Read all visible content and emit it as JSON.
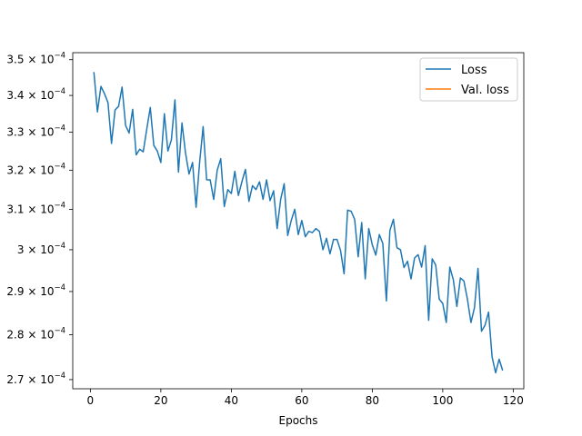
{
  "chart_data": {
    "type": "line",
    "title": "",
    "xlabel": "Epochs",
    "ylabel": "",
    "y_scale": "log",
    "xlim": [
      -5,
      123
    ],
    "ylim": [
      0.000268,
      0.000352
    ],
    "grid": false,
    "legend_placement": "top-right",
    "x_ticks": [
      0,
      20,
      40,
      60,
      80,
      100,
      120
    ],
    "x_tick_labels": [
      "0",
      "20",
      "40",
      "60",
      "80",
      "100",
      "120"
    ],
    "y_ticks": [
      0.00027,
      0.00028,
      0.00029,
      0.0003,
      0.00031,
      0.00032,
      0.00033,
      0.00034,
      0.00035
    ],
    "y_tick_labels": [
      {
        "mant": "2.7",
        "times": " × 10",
        "exp": "−4"
      },
      {
        "mant": "2.8",
        "times": " × 10",
        "exp": "−4"
      },
      {
        "mant": "2.9",
        "times": " × 10",
        "exp": "−4"
      },
      {
        "mant": "3",
        "times": " × 10",
        "exp": "−4"
      },
      {
        "mant": "3.1",
        "times": " × 10",
        "exp": "−4"
      },
      {
        "mant": "3.2",
        "times": " × 10",
        "exp": "−4"
      },
      {
        "mant": "3.3",
        "times": " × 10",
        "exp": "−4"
      },
      {
        "mant": "3.4",
        "times": " × 10",
        "exp": "−4"
      },
      {
        "mant": "3.5",
        "times": " × 10",
        "exp": "−4"
      }
    ],
    "series": [
      {
        "name": "Loss",
        "color": "#1f77b4",
        "x": [
          1,
          2,
          3,
          4,
          5,
          6,
          7,
          8,
          9,
          10,
          11,
          12,
          13,
          14,
          15,
          16,
          17,
          18,
          19,
          20,
          21,
          22,
          23,
          24,
          25,
          26,
          27,
          28,
          29,
          30,
          31,
          32,
          33,
          34,
          35,
          36,
          37,
          38,
          39,
          40,
          41,
          42,
          43,
          44,
          45,
          46,
          47,
          48,
          49,
          50,
          51,
          52,
          53,
          54,
          55,
          56,
          57,
          58,
          59,
          60,
          61,
          62,
          63,
          64,
          65,
          66,
          67,
          68,
          69,
          70,
          71,
          72,
          73,
          74,
          75,
          76,
          77,
          78,
          79,
          80,
          81,
          82,
          83,
          84,
          85,
          86,
          87,
          88,
          89,
          90,
          91,
          92,
          93,
          94,
          95,
          96,
          97,
          98,
          99,
          100,
          101,
          102,
          103,
          104,
          105,
          106,
          107,
          108,
          109,
          110,
          111,
          112,
          113,
          114,
          115,
          116,
          117
        ],
        "y": [
          0.0003465,
          0.0003355,
          0.0003425,
          0.0003405,
          0.000338,
          0.000327,
          0.000336,
          0.000337,
          0.0003423,
          0.0003318,
          0.0003298,
          0.0003362,
          0.000324,
          0.0003255,
          0.0003248,
          0.0003308,
          0.0003367,
          0.0003265,
          0.000325,
          0.000322,
          0.000335,
          0.000325,
          0.000328,
          0.0003388,
          0.0003195,
          0.0003325,
          0.0003245,
          0.000319,
          0.000322,
          0.0003105,
          0.000322,
          0.0003315,
          0.0003175,
          0.0003175,
          0.0003125,
          0.00032,
          0.000323,
          0.0003107,
          0.000315,
          0.000314,
          0.0003197,
          0.0003135,
          0.000317,
          0.0003202,
          0.000312,
          0.000316,
          0.000315,
          0.000317,
          0.0003125,
          0.0003175,
          0.0003122,
          0.0003147,
          0.0003052,
          0.0003125,
          0.0003165,
          0.0003035,
          0.0003072,
          0.00031,
          0.0003037,
          0.0003072,
          0.0003032,
          0.0003045,
          0.0003042,
          0.0003052,
          0.0003045,
          0.0003,
          0.0003028,
          0.000299,
          0.0003025,
          0.0003025,
          0.0002998,
          0.0002942,
          0.0003098,
          0.0003095,
          0.0003075,
          0.0002983,
          0.0003067,
          0.000293,
          0.0003052,
          0.0003012,
          0.0002987,
          0.0003037,
          0.0003015,
          0.0002878,
          0.0003047,
          0.0003075,
          0.0003005,
          0.0003,
          0.0002957,
          0.0002972,
          0.000293,
          0.000298,
          0.0002988,
          0.0002958,
          0.000301,
          0.0002833,
          0.0002978,
          0.0002963,
          0.0002882,
          0.0002872,
          0.0002828,
          0.0002958,
          0.0002928,
          0.0002865,
          0.0002932,
          0.0002925,
          0.0002882,
          0.0002828,
          0.0002862,
          0.0002955,
          0.0002808,
          0.0002822,
          0.0002852,
          0.000275,
          0.0002715,
          0.0002745,
          0.000272
        ]
      },
      {
        "name": "Val. loss",
        "color": "#ff7f0e",
        "x": [],
        "y": []
      }
    ]
  }
}
